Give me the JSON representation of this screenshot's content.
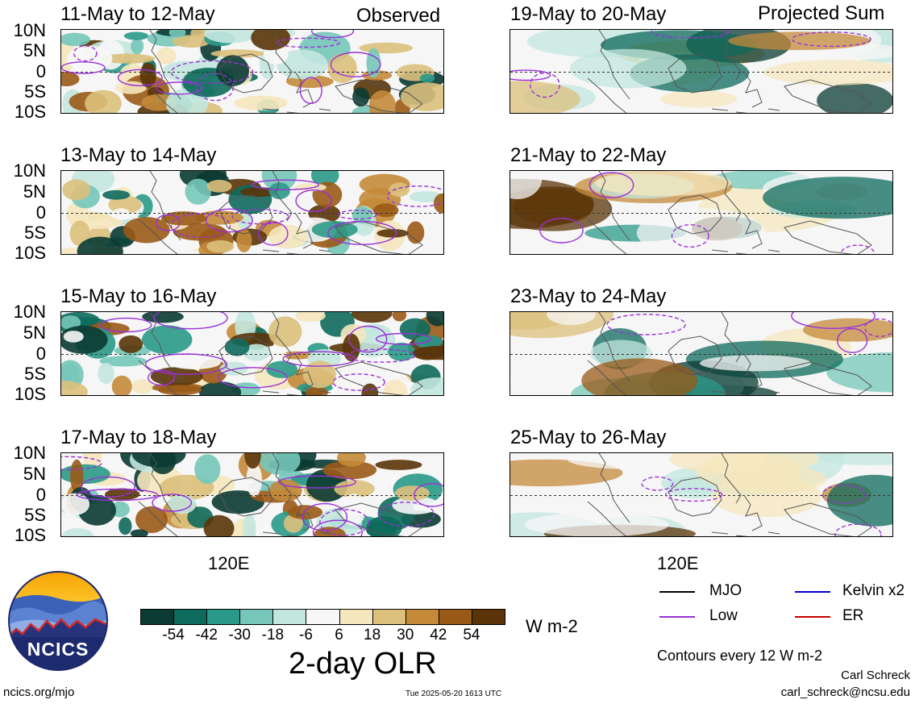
{
  "left_header": "Observed",
  "right_header": "Projected Sum",
  "observed_panels": [
    "11-May to 12-May",
    "13-May to 14-May",
    "15-May to 16-May",
    "17-May to 18-May"
  ],
  "projected_panels": [
    "19-May to 20-May",
    "21-May to 22-May",
    "23-May to 24-May",
    "25-May to 26-May"
  ],
  "lat_labels": [
    "10N",
    "5N",
    "0",
    "5S",
    "10S"
  ],
  "lon_label": "120E",
  "colorbar": {
    "colors": [
      "#0b3b33",
      "#0e6a5c",
      "#2b9a8a",
      "#76c7b9",
      "#c3e7df",
      "#f7f7f7",
      "#f5e7be",
      "#dcc07c",
      "#c48a3a",
      "#9a5a17",
      "#5a3408"
    ],
    "tick_labels": [
      "-54",
      "-42",
      "-30",
      "-18",
      "-6",
      "6",
      "18",
      "30",
      "42",
      "54"
    ],
    "units": "W m-2",
    "title": "2-day OLR"
  },
  "legend": {
    "mjo": "MJO",
    "low": "Low",
    "kelvin": "Kelvin x2",
    "er": "ER",
    "colors": {
      "mjo": "#000000",
      "low": "#9b30d9",
      "kelvin": "#0000cc",
      "er": "#cc0000"
    },
    "contours_note": "Contours every 12 W m-2"
  },
  "logo_text": "NCICS",
  "footer": {
    "url": "ncics.org/mjo",
    "timestamp": "Tue 2025-05-20 1613 UTC",
    "author": "Carl Schreck",
    "email": "carl_schreck@ncsu.edu"
  }
}
